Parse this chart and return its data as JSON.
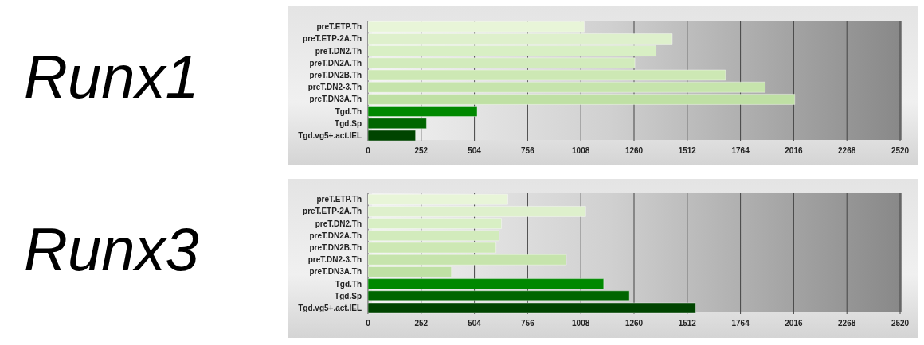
{
  "chart_data": [
    {
      "type": "bar",
      "title": "Runx1",
      "orientation": "horizontal",
      "categories": [
        "preT.ETP.Th",
        "preT.ETP-2A.Th",
        "preT.DN2.Th",
        "preT.DN2A.Th",
        "preT.DN2B.Th",
        "preT.DN2-3.Th",
        "preT.DN3A.Th",
        "Tgd.Th",
        "Tgd.Sp",
        "Tgd.vg5+.act.IEL"
      ],
      "values": [
        1024,
        1441,
        1364,
        1264,
        1693,
        1881,
        2021,
        517,
        277,
        225
      ],
      "colors": [
        "#e8f5d8",
        "#def0cc",
        "#d8efc4",
        "#d2ebbc",
        "#cde8b4",
        "#c6e4ac",
        "#bfe0a4",
        "#008800",
        "#006600",
        "#004400"
      ],
      "xlim": [
        0,
        2520
      ],
      "xticks": [
        0,
        252,
        504,
        756,
        1008,
        1260,
        1512,
        1764,
        2016,
        2268,
        2520
      ],
      "grid": "x"
    },
    {
      "type": "bar",
      "title": "Runx3",
      "orientation": "horizontal",
      "categories": [
        "preT.ETP.Th",
        "preT.ETP-2A.Th",
        "preT.DN2.Th",
        "preT.DN2A.Th",
        "preT.DN2B.Th",
        "preT.DN2-3.Th",
        "preT.DN3A.Th",
        "Tgd.Th",
        "Tgd.Sp",
        "Tgd.vg5+.act.IEL"
      ],
      "values": [
        662,
        1031,
        632,
        621,
        606,
        939,
        395,
        1116,
        1238,
        1552
      ],
      "colors": [
        "#e8f5d8",
        "#def0cc",
        "#d8efc4",
        "#d2ebbc",
        "#cde8b4",
        "#c6e4ac",
        "#bfe0a4",
        "#008800",
        "#006600",
        "#004400"
      ],
      "xlim": [
        0,
        2520
      ],
      "xticks": [
        0,
        252,
        504,
        756,
        1008,
        1260,
        1512,
        1764,
        2016,
        2268,
        2520
      ],
      "grid": "x"
    }
  ]
}
